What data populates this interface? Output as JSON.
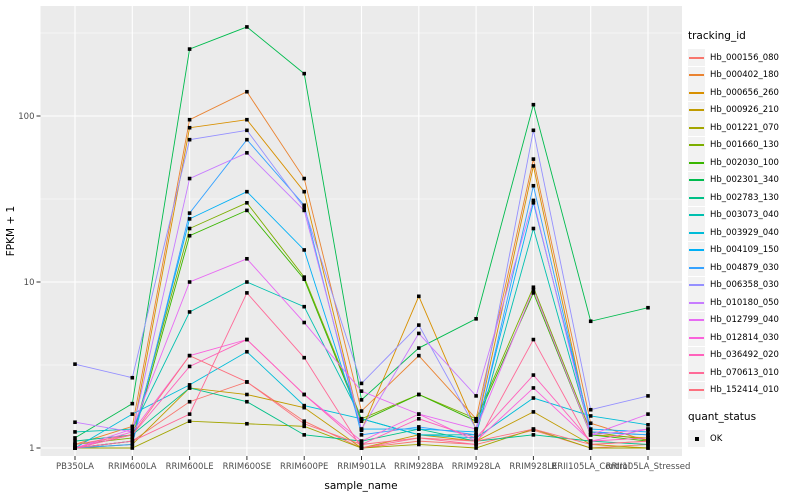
{
  "colors": {
    "panel_bg": "#EBEBEB",
    "grid": "#FFFFFF",
    "tick_text": "#4D4D4D",
    "point": "#000000",
    "legend_key_bg": "#F2F2F2"
  },
  "chart_data": {
    "type": "line",
    "title": "",
    "xlabel": "sample_name",
    "ylabel": "FPKM + 1",
    "y_scale": "log10",
    "y_ticks": [
      1,
      10,
      100
    ],
    "ylim": [
      1,
      400
    ],
    "grid": true,
    "legend_position": "right",
    "legend_title": "tracking_id",
    "quant_legend": {
      "title": "quant_status",
      "items": [
        {
          "label": "OK",
          "marker": "black-square"
        }
      ]
    },
    "categories": [
      "PB350LA",
      "RRIM600LA",
      "RRIM600LE",
      "RRIM600SE",
      "RRIM600PE",
      "RRIM901LA",
      "RRIM928BA",
      "RRIM928LA",
      "RRIM928LE",
      "RRII105LA_Control",
      "RRII105LA_Stressed"
    ],
    "series": [
      {
        "name": "Hb_000156_080",
        "color": "#F8766D",
        "values": [
          1.0,
          1.1,
          1.9,
          2.5,
          1.45,
          1.0,
          1.1,
          1.05,
          1.28,
          1.0,
          1.05
        ]
      },
      {
        "name": "Hb_000402_180",
        "color": "#EA8331",
        "values": [
          1.05,
          1.35,
          95,
          140,
          42,
          1.67,
          3.6,
          1.5,
          55,
          1.41,
          1.1
        ]
      },
      {
        "name": "Hb_000656_260",
        "color": "#D89000",
        "values": [
          1.0,
          1.2,
          85,
          95,
          35,
          1.28,
          8.2,
          1.3,
          50,
          1.2,
          1.15
        ]
      },
      {
        "name": "Hb_000926_210",
        "color": "#C09B00",
        "values": [
          1.0,
          1.05,
          2.3,
          2.1,
          1.75,
          1.0,
          1.2,
          1.1,
          1.65,
          1.05,
          1.0
        ]
      },
      {
        "name": "Hb_001221_070",
        "color": "#A3A500",
        "values": [
          1.0,
          1.0,
          1.45,
          1.4,
          1.35,
          1.0,
          1.05,
          1.0,
          1.3,
          1.0,
          1.0
        ]
      },
      {
        "name": "Hb_001660_130",
        "color": "#7CAE00",
        "values": [
          1.05,
          1.15,
          21,
          30,
          10.7,
          1.5,
          2.1,
          1.5,
          9.3,
          1.25,
          1.12
        ]
      },
      {
        "name": "Hb_002030_100",
        "color": "#39B600",
        "values": [
          1.0,
          1.1,
          19,
          27,
          10.4,
          1.45,
          2.1,
          1.45,
          8.6,
          1.2,
          1.1
        ]
      },
      {
        "name": "Hb_002301_340",
        "color": "#00BB4E",
        "values": [
          1.15,
          1.85,
          253,
          344,
          180,
          1.95,
          4.0,
          6.0,
          117,
          5.8,
          7.0
        ]
      },
      {
        "name": "Hb_002783_130",
        "color": "#00C087",
        "values": [
          1.1,
          1.2,
          2.3,
          1.9,
          1.2,
          1.1,
          1.3,
          1.1,
          1.2,
          1.1,
          1.05
        ]
      },
      {
        "name": "Hb_003073_040",
        "color": "#00C0AF",
        "values": [
          1.25,
          1.3,
          6.6,
          10,
          7.1,
          1.5,
          1.2,
          1.2,
          21,
          1.25,
          1.2
        ]
      },
      {
        "name": "Hb_003929_040",
        "color": "#00BCD8",
        "values": [
          1.0,
          1.6,
          2.4,
          3.8,
          1.8,
          1.5,
          1.2,
          1.15,
          2.0,
          1.56,
          1.38
        ]
      },
      {
        "name": "Hb_004109_150",
        "color": "#00B0F6",
        "values": [
          1.0,
          1.1,
          24,
          35,
          15.6,
          1.3,
          1.3,
          1.25,
          30,
          1.3,
          1.25
        ]
      },
      {
        "name": "Hb_004879_030",
        "color": "#35A2FF",
        "values": [
          1.0,
          1.05,
          26,
          72,
          29,
          1.2,
          1.34,
          1.2,
          38,
          1.25,
          1.2
        ]
      },
      {
        "name": "Hb_006358_030",
        "color": "#9590FF",
        "values": [
          3.2,
          2.65,
          72,
          82,
          28,
          2.45,
          5.5,
          1.3,
          82,
          1.7,
          2.06
        ]
      },
      {
        "name": "Hb_010180_050",
        "color": "#C77CFF",
        "values": [
          1.43,
          1.25,
          42,
          60,
          27,
          1.3,
          4.9,
          2.06,
          31,
          1.2,
          1.3
        ]
      },
      {
        "name": "Hb_012799_040",
        "color": "#E76BF3",
        "values": [
          1.0,
          1.3,
          10,
          13.8,
          5.7,
          2.2,
          1.6,
          1.3,
          9.0,
          1.2,
          1.6
        ]
      },
      {
        "name": "Hb_012814_030",
        "color": "#FA62DB",
        "values": [
          1.0,
          1.25,
          3.6,
          4.5,
          2.1,
          1.1,
          1.6,
          1.1,
          2.3,
          1.1,
          1.3
        ]
      },
      {
        "name": "Hb_036492_020",
        "color": "#FF62BC",
        "values": [
          1.0,
          1.2,
          3.1,
          4.5,
          2.1,
          1.05,
          1.5,
          1.15,
          2.75,
          1.1,
          1.15
        ]
      },
      {
        "name": "Hb_070613_010",
        "color": "#FF6A98",
        "values": [
          1.0,
          1.1,
          1.6,
          8.6,
          3.5,
          1.0,
          1.15,
          1.05,
          4.5,
          1.05,
          1.1
        ]
      },
      {
        "name": "Hb_152414_010",
        "color": "#FC717F",
        "values": [
          1.05,
          1.2,
          3.6,
          2.5,
          1.4,
          1.05,
          1.15,
          1.1,
          1.3,
          1.05,
          1.1
        ]
      }
    ]
  }
}
